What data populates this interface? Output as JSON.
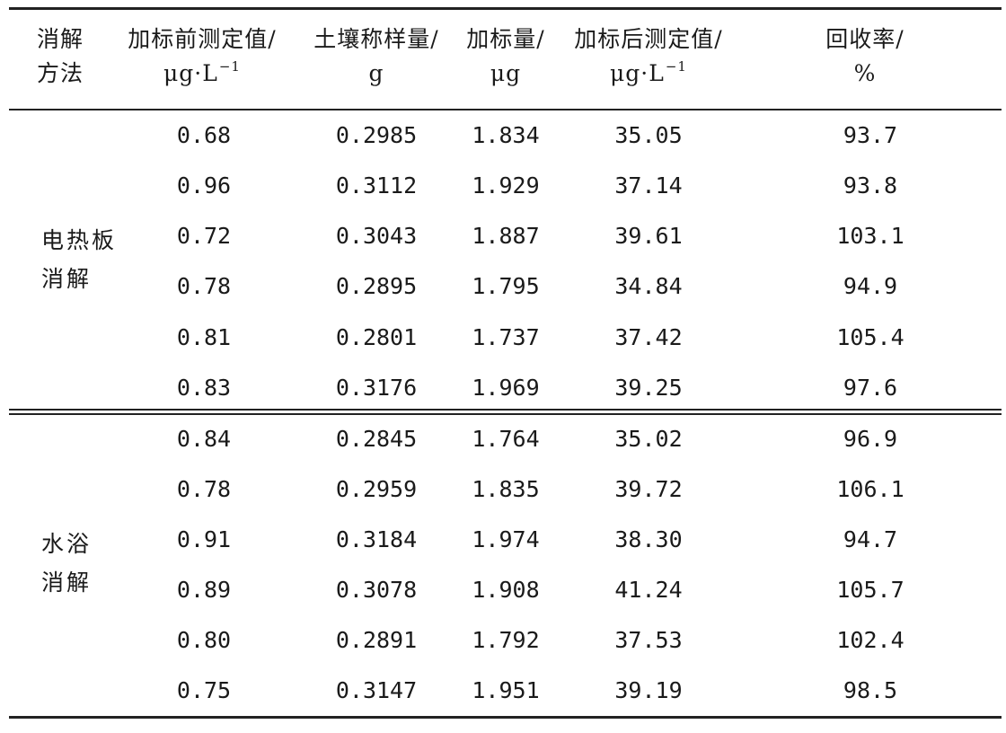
{
  "table": {
    "headers": {
      "method": {
        "line1": "消解",
        "line2": "方法"
      },
      "pre_value": {
        "line1": "加标前测定值/",
        "line2_unit": "μg·L",
        "line2_sup": "−1"
      },
      "soil_mass": {
        "line1": "土壤称样量/",
        "line2": "g"
      },
      "spike_amount": {
        "line1": "加标量/",
        "line2": "μg"
      },
      "post_value": {
        "line1": "加标后测定值/",
        "line2_unit": "μg·L",
        "line2_sup": "−1"
      },
      "recovery": {
        "line1": "回收率/",
        "line2": "%"
      }
    },
    "groups": [
      {
        "method_line1": "电热板",
        "method_line2": "消解",
        "rows": [
          [
            "0.68",
            "0.2985",
            "1.834",
            "35.05",
            "93.7"
          ],
          [
            "0.96",
            "0.3112",
            "1.929",
            "37.14",
            "93.8"
          ],
          [
            "0.72",
            "0.3043",
            "1.887",
            "39.61",
            "103.1"
          ],
          [
            "0.78",
            "0.2895",
            "1.795",
            "34.84",
            "94.9"
          ],
          [
            "0.81",
            "0.2801",
            "1.737",
            "37.42",
            "105.4"
          ],
          [
            "0.83",
            "0.3176",
            "1.969",
            "39.25",
            "97.6"
          ]
        ]
      },
      {
        "method_line1": "水浴",
        "method_line2": "消解",
        "rows": [
          [
            "0.84",
            "0.2845",
            "1.764",
            "35.02",
            "96.9"
          ],
          [
            "0.78",
            "0.2959",
            "1.835",
            "39.72",
            "106.1"
          ],
          [
            "0.91",
            "0.3184",
            "1.974",
            "38.30",
            "94.7"
          ],
          [
            "0.89",
            "0.3078",
            "1.908",
            "41.24",
            "105.7"
          ],
          [
            "0.80",
            "0.2891",
            "1.792",
            "37.53",
            "102.4"
          ],
          [
            "0.75",
            "0.3147",
            "1.951",
            "39.19",
            "98.5"
          ]
        ]
      }
    ]
  }
}
